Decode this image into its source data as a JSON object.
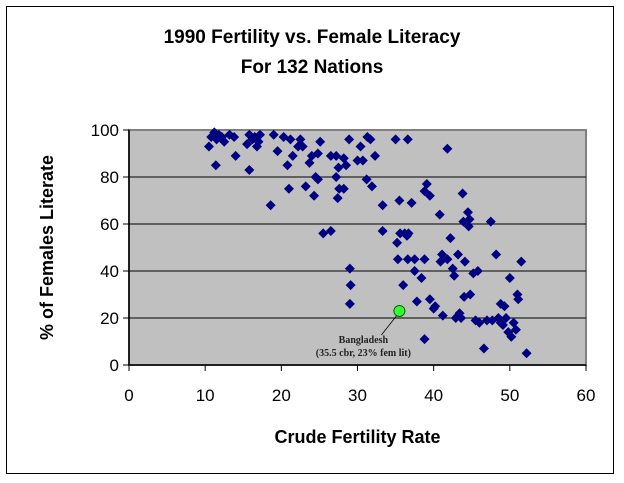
{
  "chart_data": {
    "type": "scatter",
    "title": "1990 Fertility vs. Female Literacy",
    "subtitle": "For 132 Nations",
    "xlabel": "Crude Fertility Rate",
    "ylabel": "% of Females Literate",
    "xlim": [
      0,
      60
    ],
    "ylim": [
      0,
      100
    ],
    "xticks": [
      "0",
      "10",
      "20",
      "30",
      "40",
      "50",
      "60"
    ],
    "yticks": [
      "0",
      "20",
      "40",
      "60",
      "80",
      "100"
    ],
    "grid": "horizontal",
    "plot_background": "#c0c0c0",
    "marker_color": "#000080",
    "highlight_color": "#33ff33",
    "series": [
      {
        "name": "Nations",
        "points": [
          [
            10.5,
            93
          ],
          [
            10.8,
            97
          ],
          [
            11.2,
            99
          ],
          [
            11.5,
            96
          ],
          [
            11.8,
            98
          ],
          [
            12.2,
            97
          ],
          [
            12.5,
            95
          ],
          [
            13.2,
            98
          ],
          [
            11.4,
            85
          ],
          [
            14,
            89
          ],
          [
            15.5,
            94
          ],
          [
            15.8,
            98
          ],
          [
            16.2,
            96
          ],
          [
            16.8,
            93
          ],
          [
            17.2,
            98
          ],
          [
            15.8,
            83
          ],
          [
            16.5,
            97
          ],
          [
            18.6,
            68
          ],
          [
            19,
            98
          ],
          [
            19.5,
            91
          ],
          [
            20.3,
            97
          ],
          [
            20.8,
            85
          ],
          [
            21.2,
            96
          ],
          [
            21,
            75
          ],
          [
            21.5,
            89
          ],
          [
            22.2,
            93
          ],
          [
            22.5,
            96
          ],
          [
            23.2,
            76
          ],
          [
            23.7,
            86
          ],
          [
            24,
            89
          ],
          [
            24.3,
            72
          ],
          [
            24.8,
            90
          ],
          [
            25.1,
            95
          ],
          [
            24.5,
            80
          ],
          [
            24.8,
            79
          ],
          [
            25.5,
            56
          ],
          [
            26.5,
            89
          ],
          [
            27.2,
            89
          ],
          [
            27.5,
            84
          ],
          [
            27.2,
            80
          ],
          [
            27.6,
            75
          ],
          [
            27.4,
            71
          ],
          [
            28.2,
            88
          ],
          [
            28.5,
            85
          ],
          [
            28.9,
            96
          ],
          [
            28.2,
            75
          ],
          [
            29,
            41
          ],
          [
            29.1,
            34
          ],
          [
            29,
            26
          ],
          [
            30.4,
            93
          ],
          [
            30.7,
            87
          ],
          [
            31.3,
            97
          ],
          [
            31.7,
            96
          ],
          [
            31.2,
            79
          ],
          [
            31.9,
            76
          ],
          [
            32.3,
            89
          ],
          [
            33.3,
            68
          ],
          [
            33.3,
            57
          ],
          [
            35,
            96
          ],
          [
            35.5,
            70
          ],
          [
            35.2,
            52
          ],
          [
            35.3,
            45
          ],
          [
            35.6,
            56
          ],
          [
            36.2,
            56
          ],
          [
            36.5,
            55
          ],
          [
            36.7,
            56
          ],
          [
            36.6,
            96
          ],
          [
            37.1,
            69
          ],
          [
            36.6,
            45
          ],
          [
            37.5,
            45
          ],
          [
            37.8,
            27
          ],
          [
            38.4,
            37
          ],
          [
            38.8,
            45
          ],
          [
            38.8,
            74
          ],
          [
            39.1,
            77
          ],
          [
            39.5,
            72
          ],
          [
            38.8,
            11
          ],
          [
            39.5,
            28
          ],
          [
            40.2,
            25
          ],
          [
            40.8,
            64
          ],
          [
            40.9,
            44
          ],
          [
            41.1,
            47
          ],
          [
            41.2,
            21
          ],
          [
            41.8,
            92
          ],
          [
            41.8,
            45
          ],
          [
            42.2,
            54
          ],
          [
            42.5,
            41
          ],
          [
            42.7,
            38
          ],
          [
            42.9,
            20
          ],
          [
            43.2,
            47
          ],
          [
            43.4,
            22
          ],
          [
            43.6,
            20
          ],
          [
            43.8,
            73
          ],
          [
            43.9,
            61
          ],
          [
            44,
            29
          ],
          [
            44.1,
            44
          ],
          [
            44.5,
            65
          ],
          [
            44.6,
            59
          ],
          [
            44.7,
            62
          ],
          [
            44.8,
            30
          ],
          [
            45.2,
            39
          ],
          [
            45.5,
            19
          ],
          [
            46,
            18
          ],
          [
            46.6,
            7
          ],
          [
            47,
            19
          ],
          [
            47.5,
            61
          ],
          [
            47.7,
            19
          ],
          [
            48.2,
            47
          ],
          [
            48.5,
            20
          ],
          [
            48.8,
            18
          ],
          [
            49.1,
            17
          ],
          [
            49.3,
            25
          ],
          [
            49.5,
            20
          ],
          [
            49.8,
            14
          ],
          [
            50.2,
            12
          ],
          [
            50,
            37
          ],
          [
            50.5,
            18
          ],
          [
            50.8,
            15
          ],
          [
            51.1,
            28
          ],
          [
            51.5,
            44
          ],
          [
            52.2,
            5
          ],
          [
            36,
            34
          ],
          [
            37.5,
            40
          ],
          [
            40,
            24
          ],
          [
            26.5,
            57
          ],
          [
            45.8,
            40
          ],
          [
            30,
            87
          ],
          [
            22.8,
            93
          ],
          [
            17,
            95
          ],
          [
            13.8,
            97
          ],
          [
            48.8,
            26
          ],
          [
            51,
            30
          ]
        ]
      },
      {
        "name": "Bangladesh",
        "points": [
          [
            35.5,
            23
          ]
        ]
      }
    ],
    "annotations": [
      {
        "text_line1": "Bangladesh",
        "text_line2": "(35.5 cbr, 23% fem lit)",
        "target": [
          35.5,
          23
        ]
      }
    ]
  }
}
